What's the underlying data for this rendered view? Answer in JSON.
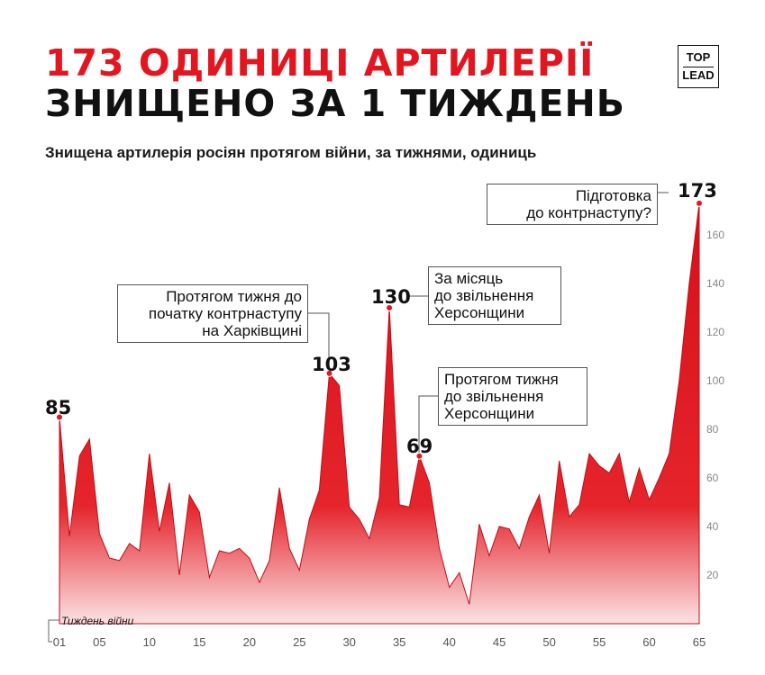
{
  "header": {
    "title_line1": "173 ОДИНИЦІ АРТИЛЕРІЇ",
    "title_line2": "ЗНИЩЕНО ЗА 1 ТИЖДЕНЬ",
    "subtitle": "Знищена артилерія росіян протягом війни, за тижнями, одиниць",
    "logo_top": "TOP",
    "logo_bottom": "LEAD"
  },
  "colors": {
    "accent": "#e3161f",
    "text": "#111111"
  },
  "chart_data": {
    "type": "area",
    "title": "Знищена артилерія росіян протягом війни, за тижнями, одиниць",
    "xlabel": "Тиждень війни",
    "ylabel": "",
    "xlim": [
      1,
      65
    ],
    "ylim": [
      0,
      180
    ],
    "x_ticks": [
      "01",
      "05",
      "10",
      "15",
      "20",
      "25",
      "30",
      "35",
      "40",
      "45",
      "50",
      "55",
      "60",
      "65"
    ],
    "y_ticks": [
      "20",
      "40",
      "60",
      "80",
      "100",
      "120",
      "140",
      "160"
    ],
    "x": [
      1,
      2,
      3,
      4,
      5,
      6,
      7,
      8,
      9,
      10,
      11,
      12,
      13,
      14,
      15,
      16,
      17,
      18,
      19,
      20,
      21,
      22,
      23,
      24,
      25,
      26,
      27,
      28,
      29,
      30,
      31,
      32,
      33,
      34,
      35,
      36,
      37,
      38,
      39,
      40,
      41,
      42,
      43,
      44,
      45,
      46,
      47,
      48,
      49,
      50,
      51,
      52,
      53,
      54,
      55,
      56,
      57,
      58,
      59,
      60,
      61,
      62,
      63,
      64,
      65
    ],
    "values": [
      85,
      36,
      69,
      76,
      37,
      27,
      26,
      33,
      30,
      70,
      38,
      58,
      20,
      53,
      46,
      19,
      30,
      29,
      31,
      27,
      17,
      26,
      56,
      31,
      22,
      43,
      55,
      103,
      98,
      48,
      43,
      35,
      52,
      130,
      49,
      48,
      69,
      58,
      31,
      15,
      21,
      8,
      41,
      28,
      40,
      39,
      31,
      44,
      53,
      29,
      67,
      44,
      49,
      70,
      65,
      62,
      70,
      50,
      64,
      51,
      60,
      70,
      100,
      140,
      173
    ],
    "peaks": [
      {
        "week": 1,
        "value": 85,
        "label": "85"
      },
      {
        "week": 28,
        "value": 103,
        "label": "103"
      },
      {
        "week": 34,
        "value": 130,
        "label": "130"
      },
      {
        "week": 37,
        "value": 69,
        "label": "69"
      },
      {
        "week": 65,
        "value": 173,
        "label": "173"
      }
    ],
    "annotations": [
      {
        "week": 28,
        "lines": [
          "Протягом тижня до",
          "початку контрнаступу",
          "на Харківщині"
        ]
      },
      {
        "week": 34,
        "lines": [
          "За місяць",
          "до звільнення",
          "Херсонщини"
        ]
      },
      {
        "week": 37,
        "lines": [
          "Протягом тижня",
          "до звільнення",
          "Херсонщини"
        ]
      },
      {
        "week": 65,
        "lines": [
          "Підготовка",
          "до контрнаступу?"
        ]
      }
    ]
  }
}
